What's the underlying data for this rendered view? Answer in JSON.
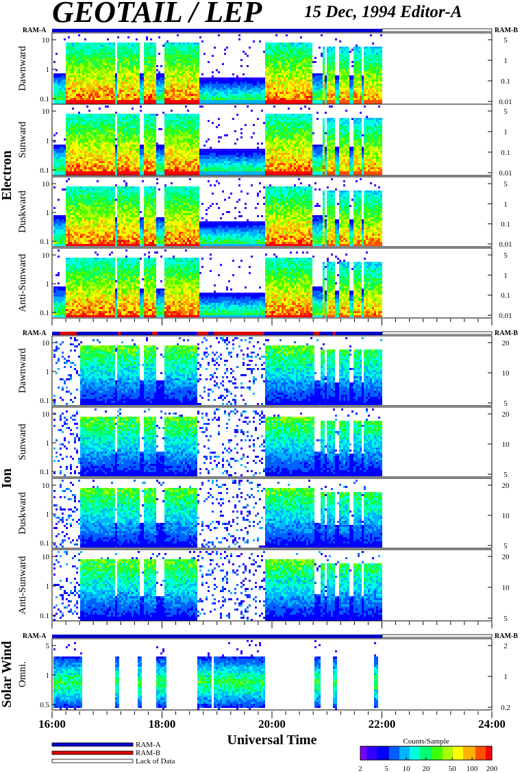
{
  "header": {
    "title": "GEOTAIL / LEP",
    "subtitle": "15 Dec, 1994   Editor-A"
  },
  "chart_data": {
    "type": "heatmap",
    "title": "GEOTAIL / LEP",
    "subtitle": "15 Dec, 1994   Editor-A",
    "xlabel": "Universal Time",
    "x_range": [
      "16:00",
      "24:00"
    ],
    "x_tick_labels": [
      "16:00",
      "18:00",
      "20:00",
      "22:00",
      "24:00"
    ],
    "data_end": "21:57",
    "mode_bar_labels": {
      "left": "RAM-A",
      "right": "RAM-B"
    },
    "groups": [
      {
        "name": "Electron",
        "panels": [
          {
            "label": "Dawnward",
            "left_ticks": [
              "10",
              "1",
              "0.1"
            ],
            "right_ticks": [
              "5",
              "1",
              "0.1",
              "0.01"
            ]
          },
          {
            "label": "Sunward",
            "left_ticks": [
              "10",
              "1",
              "0.1"
            ],
            "right_ticks": [
              "5",
              "1",
              "0.1",
              "0.01"
            ]
          },
          {
            "label": "Duskward",
            "left_ticks": [
              "10",
              "1",
              "0.1"
            ],
            "right_ticks": [
              "5",
              "1",
              "0.1",
              "0.01"
            ]
          },
          {
            "label": "Anti-Sunward",
            "left_ticks": [
              "10",
              "1",
              "0.1"
            ],
            "right_ticks": [
              "5",
              "1",
              "0.1",
              "0.01"
            ]
          }
        ]
      },
      {
        "name": "Ion",
        "panels": [
          {
            "label": "Dawnward",
            "left_ticks": [
              "10",
              "1",
              "0.1"
            ],
            "right_ticks": [
              "20",
              "10",
              "5"
            ]
          },
          {
            "label": "Sunward",
            "left_ticks": [
              "10",
              "1",
              "0.1"
            ],
            "right_ticks": [
              "20",
              "10",
              "5"
            ]
          },
          {
            "label": "Duskward",
            "left_ticks": [
              "10",
              "1",
              "0.1"
            ],
            "right_ticks": [
              "20",
              "10",
              "5"
            ]
          },
          {
            "label": "Anti-Sunward",
            "left_ticks": [
              "10",
              "1",
              "0.1"
            ],
            "right_ticks": [
              "20",
              "10",
              "5"
            ]
          }
        ]
      },
      {
        "name": "Solar Wind",
        "panels": [
          {
            "label": "Omni.",
            "left_ticks": [
              "5",
              "1",
              "0.5"
            ],
            "right_ticks": [
              "2",
              "1",
              "0.2"
            ]
          }
        ]
      }
    ],
    "legend": [
      {
        "label": "RAM-A",
        "color": "#0000cc"
      },
      {
        "label": "RAM-B",
        "color": "#dd0000"
      },
      {
        "label": "Lack of Data",
        "color": "#ffffff"
      }
    ],
    "colorbar": {
      "title": "Counts/Sample",
      "tick_labels": [
        "2",
        "5",
        "10",
        "20",
        "50",
        "100",
        "200"
      ],
      "scale": "log"
    }
  }
}
